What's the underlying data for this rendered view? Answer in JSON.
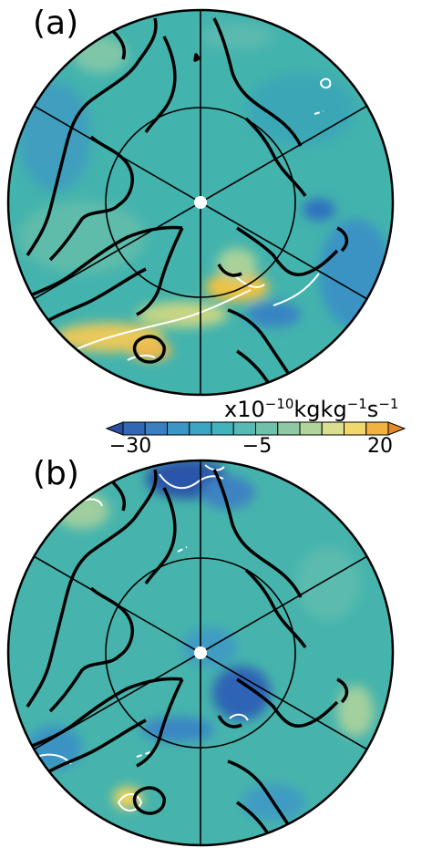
{
  "panels": [
    {
      "label": "(a)"
    },
    {
      "label": "(b)"
    }
  ],
  "colorbar": {
    "unit_prefix": "x10",
    "unit_exp": "−10",
    "unit_body": "kgkg",
    "unit_exp2": "−1",
    "unit_s": "s",
    "unit_exp3": "−1",
    "tick_labels": [
      "−30",
      "−5",
      "20"
    ],
    "colors": [
      "#2a4fa0",
      "#3267b5",
      "#3a7fc0",
      "#3b95c5",
      "#3ba6c4",
      "#40b3bd",
      "#55bab3",
      "#70c1aa",
      "#8ec9a4",
      "#b1d49c",
      "#d8df8f",
      "#f2d86a",
      "#f1b23f",
      "#e2892a"
    ]
  },
  "colors": {
    "ocean_base": "#43b3ad",
    "positive_anomaly": "#f4cf4c",
    "negative_anomaly": "#2c63b7",
    "coast": "#000000",
    "contour": "#ffffff"
  }
}
